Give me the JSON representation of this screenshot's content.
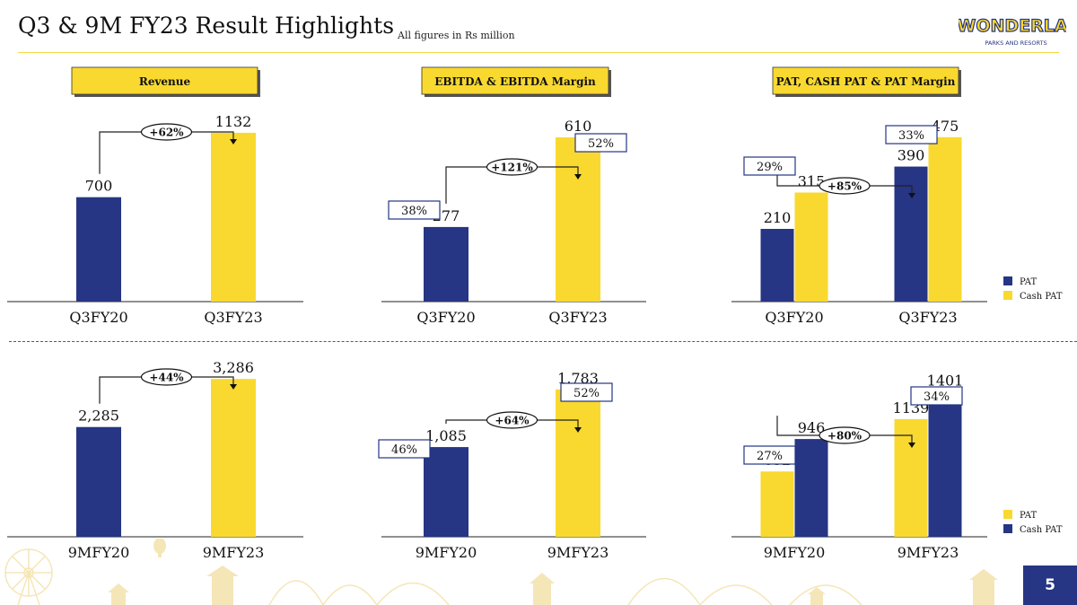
{
  "slide": {
    "title": "Q3 & 9M FY23 Result Highlights",
    "subtitle": "All figures in Rs million",
    "page_number": "5",
    "logo": {
      "brand": "WONDERLA",
      "tagline": "PARKS AND RESORTS"
    }
  },
  "colors": {
    "navy": "#263584",
    "yellow": "#f9d92f",
    "label_border": "#263584"
  },
  "legend": {
    "pat": "PAT",
    "cash_pat": "Cash PAT"
  },
  "chart_data": [
    {
      "type": "bar",
      "section": "Revenue",
      "categories": [
        "Q3FY20",
        "Q3FY23"
      ],
      "series": [
        {
          "values": [
            700,
            1132
          ],
          "colors": [
            "#263584",
            "#f9d92f"
          ]
        }
      ],
      "value_labels": [
        "700",
        "1132"
      ],
      "growth": "+62%"
    },
    {
      "type": "bar",
      "section": "EBITDA & EBITDA Margin",
      "categories": [
        "Q3FY20",
        "Q3FY23"
      ],
      "series": [
        {
          "values": [
            277,
            610
          ],
          "colors": [
            "#263584",
            "#f9d92f"
          ]
        }
      ],
      "value_labels": [
        "277",
        "610"
      ],
      "margins": [
        "38%",
        "52%"
      ],
      "growth": "+121%"
    },
    {
      "type": "bar",
      "section": "PAT, CASH PAT & PAT Margin",
      "categories": [
        "Q3FY20",
        "Q3FY23"
      ],
      "series": [
        {
          "name": "PAT",
          "values": [
            210,
            390
          ],
          "color": "#263584"
        },
        {
          "name": "Cash PAT",
          "values": [
            315,
            475
          ],
          "color": "#f9d92f"
        }
      ],
      "margins": [
        "29%",
        "33%"
      ],
      "growth": "+85%"
    },
    {
      "type": "bar",
      "categories": [
        "9MFY20",
        "9MFY23"
      ],
      "series": [
        {
          "values": [
            2285,
            3286
          ],
          "colors": [
            "#263584",
            "#f9d92f"
          ]
        }
      ],
      "value_labels": [
        "2,285",
        "3,286"
      ],
      "growth": "+44%"
    },
    {
      "type": "bar",
      "categories": [
        "9MFY20",
        "9MFY23"
      ],
      "series": [
        {
          "values": [
            1085,
            1783
          ],
          "colors": [
            "#263584",
            "#f9d92f"
          ]
        }
      ],
      "value_labels": [
        "1,085",
        "1,783"
      ],
      "margins": [
        "46%",
        "52%"
      ],
      "growth": "+64%"
    },
    {
      "type": "bar",
      "categories": [
        "9MFY20",
        "9MFY23"
      ],
      "series": [
        {
          "name": "PAT",
          "values": [
            632,
            1139
          ],
          "color": "#f9d92f"
        },
        {
          "name": "Cash PAT",
          "values": [
            946,
            1401
          ],
          "color": "#263584"
        }
      ],
      "margins": [
        "27%",
        "34%"
      ],
      "growth": "+80%"
    }
  ]
}
